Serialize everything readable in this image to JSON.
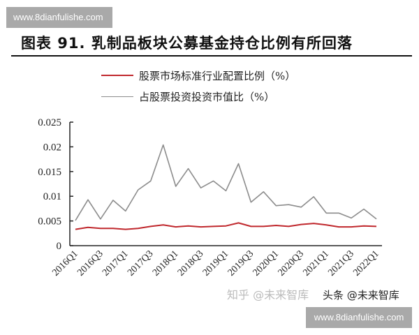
{
  "watermark_top": "www.8dianfulishe.com",
  "watermark_bottom": "www.8dianfulishe.com",
  "watermark_zhihu": "知乎 @未来智库",
  "watermark_toutiao": "头条 @未来智库",
  "chart_data": {
    "type": "line",
    "title": "图表 91. 乳制品板块公募基金持仓比例有所回落",
    "xlabel": "",
    "ylabel": "",
    "ylim": [
      0,
      0.025
    ],
    "yticks": [
      "0",
      "0.005",
      "0.01",
      "0.015",
      "0.02",
      "0.025"
    ],
    "ytick_values": [
      0,
      0.005,
      0.01,
      0.015,
      0.02,
      0.025
    ],
    "grid": false,
    "legend_position": "top",
    "x": [
      "2016Q1",
      "2016Q2",
      "2016Q3",
      "2016Q4",
      "2017Q1",
      "2017Q2",
      "2017Q3",
      "2017Q4",
      "2018Q1",
      "2018Q2",
      "2018Q3",
      "2018Q4",
      "2019Q1",
      "2019Q2",
      "2019Q3",
      "2019Q4",
      "2020Q1",
      "2020Q2",
      "2020Q3",
      "2020Q4",
      "2021Q1",
      "2021Q2",
      "2021Q3",
      "2021Q4",
      "2022Q1"
    ],
    "xtick_labels": [
      "2016Q1",
      "2016Q3",
      "2017Q1",
      "2017Q3",
      "2018Q1",
      "2018Q3",
      "2019Q1",
      "2019Q3",
      "2020Q1",
      "2020Q3",
      "2021Q1",
      "2021Q3",
      "2022Q1"
    ],
    "series": [
      {
        "name": "股票市场标准行业配置比例（%）",
        "color": "#c0282d",
        "values": [
          0.0033,
          0.0037,
          0.0035,
          0.0035,
          0.0033,
          0.0035,
          0.0039,
          0.0042,
          0.0038,
          0.004,
          0.0038,
          0.0039,
          0.004,
          0.0046,
          0.0039,
          0.0039,
          0.0041,
          0.0039,
          0.0043,
          0.0045,
          0.0042,
          0.0038,
          0.0038,
          0.004,
          0.0039
        ]
      },
      {
        "name": "占股票投资投资市值比（%）",
        "color": "#8c8c8c",
        "values": [
          0.0051,
          0.0093,
          0.0054,
          0.0092,
          0.007,
          0.0113,
          0.0131,
          0.0204,
          0.012,
          0.0156,
          0.0117,
          0.0131,
          0.0111,
          0.0166,
          0.0088,
          0.0109,
          0.0081,
          0.0083,
          0.0078,
          0.0099,
          0.0066,
          0.0066,
          0.0056,
          0.0074,
          0.0054
        ]
      }
    ]
  }
}
